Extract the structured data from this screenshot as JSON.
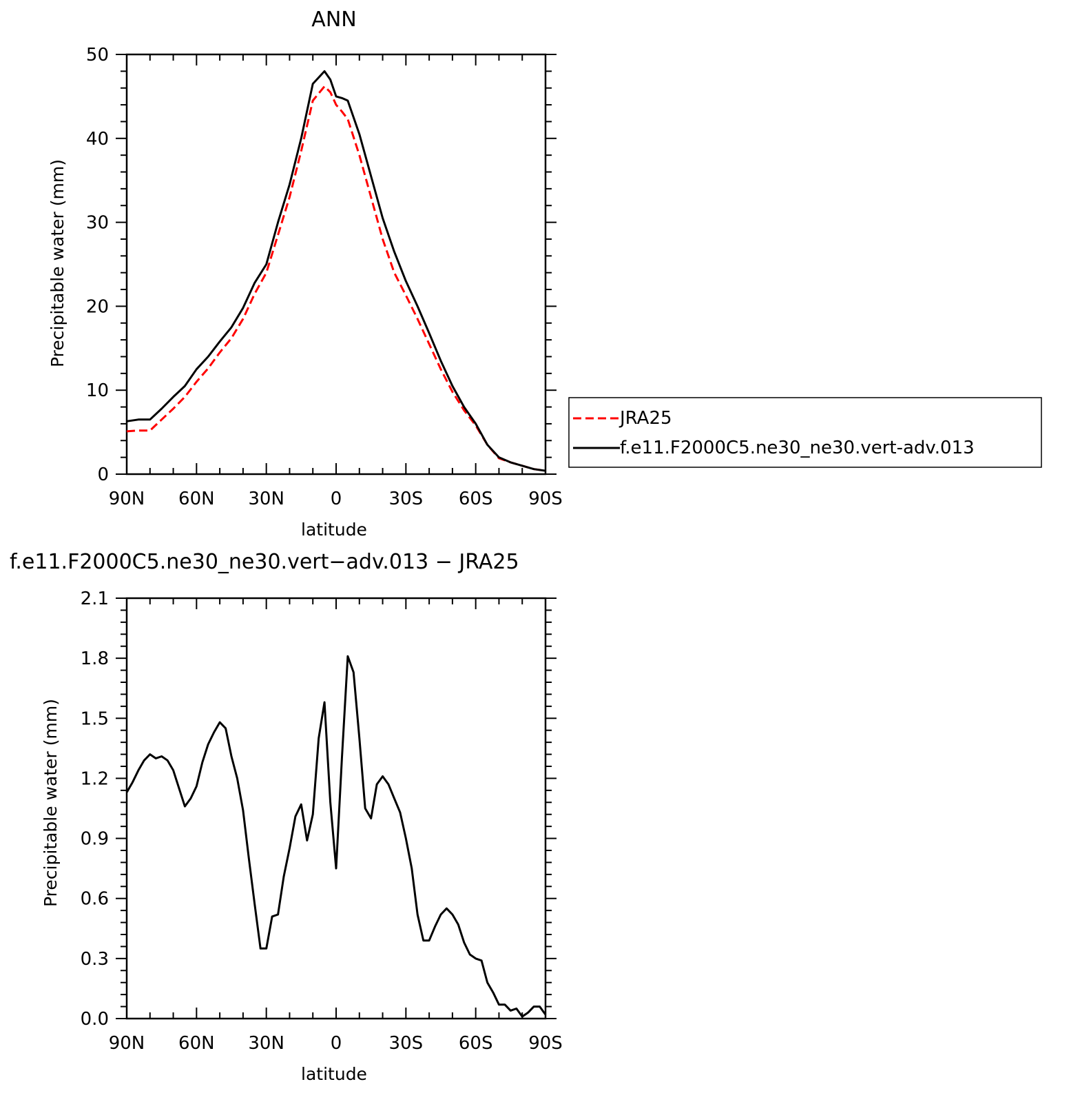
{
  "chart_data": [
    {
      "type": "line",
      "title": "ANN",
      "xlabel": "latitude",
      "ylabel": "Precipitable water (mm)",
      "xlim": [
        90,
        -90
      ],
      "ylim": [
        0,
        50
      ],
      "x_ticks": [
        90,
        60,
        30,
        0,
        -30,
        -60,
        -90
      ],
      "x_tick_labels": [
        "90N",
        "60N",
        "30N",
        "0",
        "30S",
        "60S",
        "90S"
      ],
      "y_ticks": [
        0,
        10,
        20,
        30,
        40,
        50
      ],
      "y_tick_labels": [
        "0",
        "10",
        "20",
        "30",
        "40",
        "50"
      ],
      "grid": false,
      "legend": {
        "placement": "right, outside plot"
      },
      "x": [
        90,
        85,
        80,
        75,
        70,
        65,
        60,
        55,
        50,
        45,
        40,
        35,
        30,
        25,
        20,
        15,
        10,
        5,
        2.5,
        0,
        -2.5,
        -5,
        -10,
        -15,
        -20,
        -25,
        -30,
        -35,
        -40,
        -45,
        -50,
        -55,
        -60,
        -65,
        -70,
        -75,
        -80,
        -85,
        -90
      ],
      "series": [
        {
          "name": "JRA25",
          "color": "#ff0000",
          "dash": "dashed",
          "values": [
            5.1,
            5.2,
            5.2,
            6.5,
            7.8,
            9.2,
            11.0,
            12.6,
            14.5,
            16.2,
            18.5,
            21.5,
            24.0,
            28.5,
            33.0,
            38.5,
            44.5,
            46.2,
            45.5,
            44.0,
            43.2,
            42.3,
            38.0,
            33.0,
            28.0,
            24.0,
            21.3,
            18.5,
            15.5,
            12.5,
            9.8,
            7.6,
            5.8,
            3.5,
            1.9,
            1.4,
            1.0,
            0.6,
            0.4
          ]
        },
        {
          "name": "f.e11.F2000C5.ne30_ne30.vert-adv.013",
          "color": "#000000",
          "dash": "solid",
          "values": [
            6.3,
            6.5,
            6.5,
            7.8,
            9.2,
            10.5,
            12.5,
            14.0,
            15.8,
            17.5,
            19.8,
            22.8,
            25.0,
            30.0,
            34.5,
            40.0,
            46.5,
            48.0,
            47.0,
            45.0,
            44.8,
            44.5,
            40.5,
            35.5,
            30.5,
            26.5,
            23.0,
            20.0,
            16.8,
            13.5,
            10.5,
            8.0,
            6.0,
            3.5,
            2.0,
            1.4,
            1.0,
            0.6,
            0.4
          ]
        }
      ]
    },
    {
      "type": "line",
      "title": "f.e11.F2000C5.ne30_ne30.vert−adv.013 − JRA25",
      "xlabel": "latitude",
      "ylabel": "Precipitable water (mm)",
      "xlim": [
        90,
        -90
      ],
      "ylim": [
        0.0,
        2.1
      ],
      "x_ticks": [
        90,
        60,
        30,
        0,
        -30,
        -60,
        -90
      ],
      "x_tick_labels": [
        "90N",
        "60N",
        "30N",
        "0",
        "30S",
        "60S",
        "90S"
      ],
      "y_ticks": [
        0.0,
        0.3,
        0.6,
        0.9,
        1.2,
        1.5,
        1.8,
        2.1
      ],
      "y_tick_labels": [
        "0.0",
        "0.3",
        "0.6",
        "0.9",
        "1.2",
        "1.5",
        "1.8",
        "2.1"
      ],
      "grid": false,
      "x": [
        90,
        87.5,
        85,
        82.5,
        80,
        77.5,
        75,
        72.5,
        70,
        67.5,
        65,
        62.5,
        60,
        57.5,
        55,
        52.5,
        50,
        47.5,
        45,
        42.5,
        40,
        37.5,
        35,
        32.5,
        30,
        27.5,
        25,
        22.5,
        20,
        17.5,
        15,
        12.5,
        10,
        7.5,
        5,
        2.5,
        0,
        -2.5,
        -5,
        -7.5,
        -10,
        -12.5,
        -15,
        -17.5,
        -20,
        -22.5,
        -25,
        -27.5,
        -30,
        -32.5,
        -35,
        -37.5,
        -40,
        -42.5,
        -45,
        -47.5,
        -50,
        -52.5,
        -55,
        -57.5,
        -60,
        -62.5,
        -65,
        -67.5,
        -70,
        -72.5,
        -75,
        -77.5,
        -80,
        -82.5,
        -85,
        -87.5,
        -90
      ],
      "series": [
        {
          "color": "#000000",
          "dash": "solid",
          "values": [
            1.13,
            1.18,
            1.24,
            1.29,
            1.32,
            1.3,
            1.31,
            1.29,
            1.24,
            1.15,
            1.06,
            1.1,
            1.16,
            1.28,
            1.37,
            1.43,
            1.48,
            1.45,
            1.31,
            1.2,
            1.04,
            0.8,
            0.57,
            0.35,
            0.35,
            0.51,
            0.52,
            0.71,
            0.85,
            1.01,
            1.07,
            0.89,
            1.02,
            1.4,
            1.58,
            1.08,
            0.75,
            1.3,
            1.81,
            1.73,
            1.4,
            1.05,
            1.0,
            1.17,
            1.21,
            1.17,
            1.1,
            1.03,
            0.9,
            0.75,
            0.52,
            0.39,
            0.39,
            0.46,
            0.52,
            0.55,
            0.52,
            0.47,
            0.38,
            0.32,
            0.3,
            0.29,
            0.18,
            0.13,
            0.07,
            0.07,
            0.04,
            0.05,
            0.01,
            0.03,
            0.06,
            0.06,
            0.02
          ]
        }
      ]
    }
  ]
}
